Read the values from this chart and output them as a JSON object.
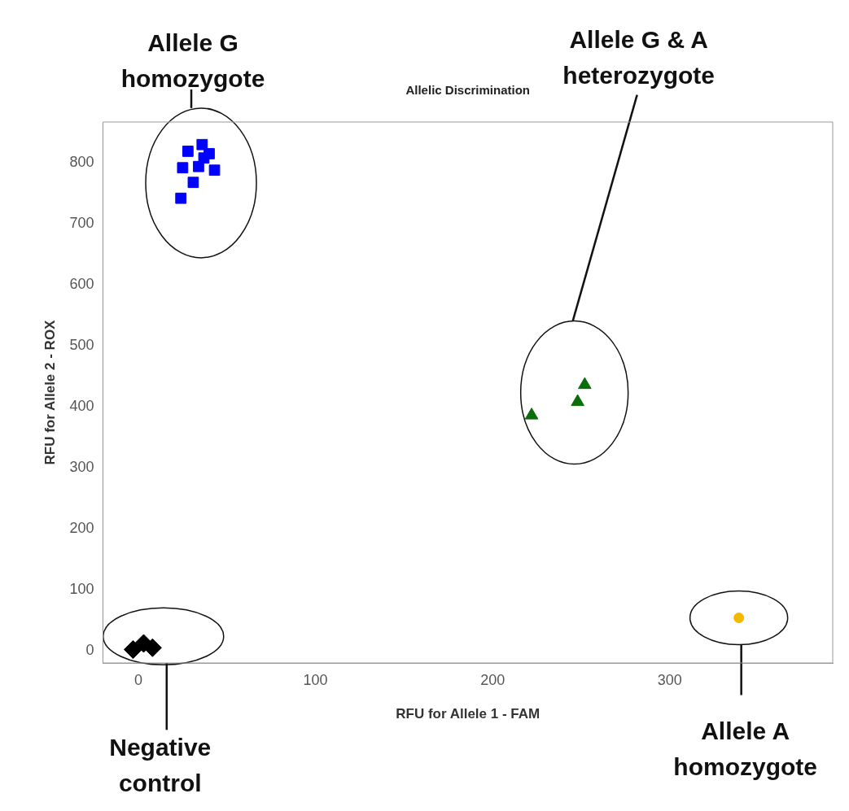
{
  "chart_data": {
    "type": "scatter",
    "title": "Allelic Discrimination",
    "xlabel": "RFU for Allele 1 - FAM",
    "ylabel": "RFU for Allele 2 - ROX",
    "xlim": [
      -20,
      392
    ],
    "ylim": [
      -20,
      867
    ],
    "xticks": [
      0,
      100,
      200,
      300
    ],
    "yticks": [
      0,
      100,
      200,
      300,
      400,
      500,
      600,
      700,
      800
    ],
    "grid": false,
    "legend": false,
    "series": [
      {
        "color": "#0000ff",
        "marker": "square",
        "x": [
          36,
          28,
          40,
          25,
          34,
          43,
          31,
          24,
          37
        ],
        "values": [
          830,
          819,
          815,
          792,
          794,
          788,
          768,
          742,
          808
        ]
      },
      {
        "color": "#0a6e0a",
        "marker": "triangle",
        "x": [
          252,
          248,
          222
        ],
        "values": [
          436,
          408,
          386
        ]
      },
      {
        "color": "#000000",
        "marker": "diamond",
        "x": [
          8,
          3,
          -3
        ],
        "values": [
          5,
          12,
          2
        ]
      },
      {
        "color": "#f5b800",
        "marker": "circle",
        "x": [
          339
        ],
        "values": [
          54
        ]
      }
    ],
    "annotations": [
      "Allele G homozygote",
      "Allele G & A heterozygote",
      "Negative control",
      "Allele A homozygote"
    ]
  }
}
